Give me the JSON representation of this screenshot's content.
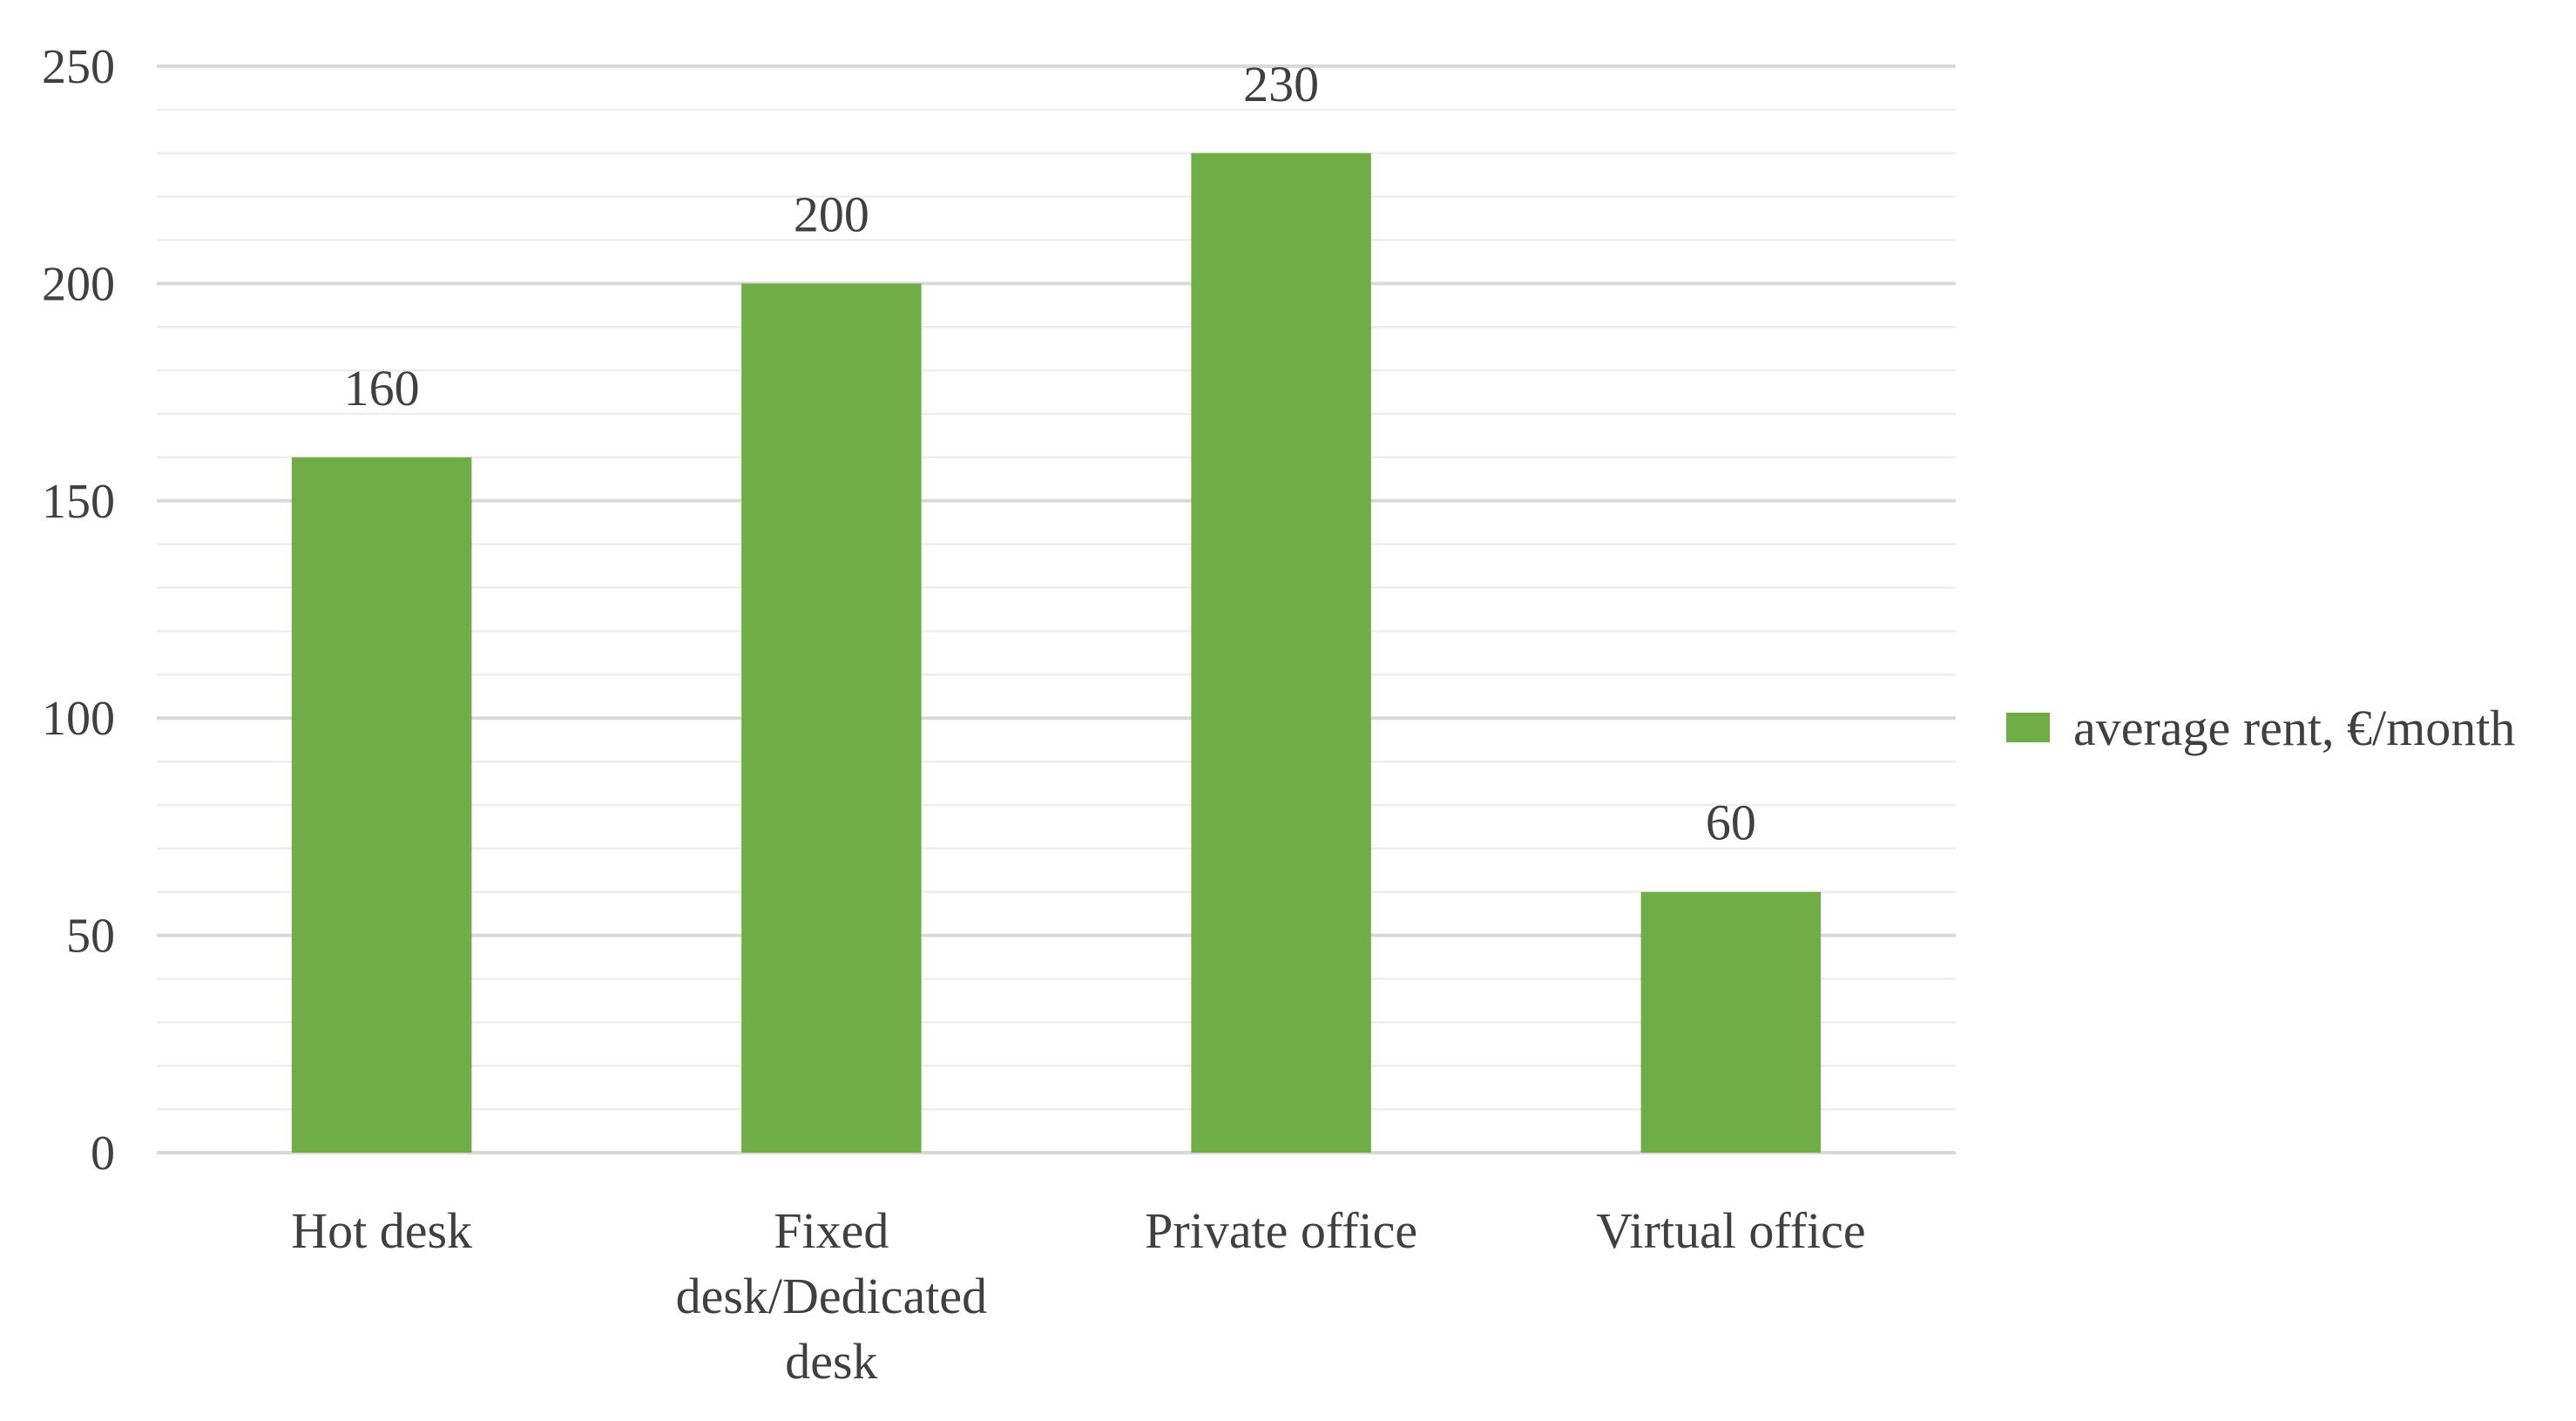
{
  "chart_data": {
    "type": "bar",
    "categories": [
      "Hot desk",
      "Fixed desk/Dedicated desk",
      "Private office",
      "Virtual office"
    ],
    "category_label_lines": [
      [
        "Hot desk"
      ],
      [
        "Fixed",
        "desk/Dedicated",
        "desk"
      ],
      [
        "Private office"
      ],
      [
        "Virtual office"
      ]
    ],
    "series": [
      {
        "name": "average rent, €/month",
        "values": [
          160,
          200,
          230,
          60
        ],
        "color": "#70ad47"
      }
    ],
    "title": "",
    "xlabel": "",
    "ylabel": "",
    "ylim": [
      0,
      250
    ],
    "yticks": [
      0,
      50,
      100,
      150,
      200,
      250
    ],
    "minor_step": 10,
    "data_labels": true,
    "grid": true,
    "legend": "right",
    "colors": {
      "major_grid": "#d9d9d9",
      "minor_grid": "#ededed",
      "text": "#404040"
    }
  }
}
